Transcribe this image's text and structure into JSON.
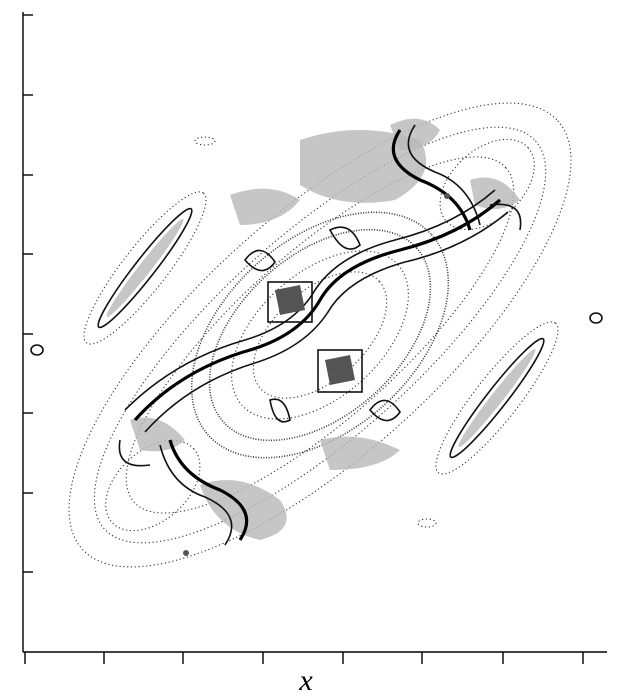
{
  "figure": {
    "x_label": "x"
  }
}
